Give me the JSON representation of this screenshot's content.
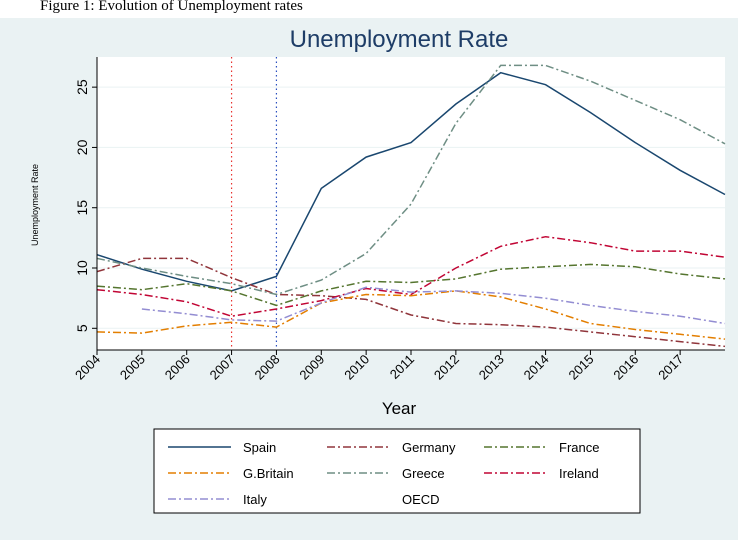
{
  "caption": "Figure 1: Evolution of Unemployment rates",
  "chart_data": {
    "type": "line",
    "title": "Unemployment Rate",
    "xlabel": "Year",
    "ylabel": "Unemployment Rate",
    "x": [
      2004,
      2005,
      2006,
      2007,
      2008,
      2009,
      2010,
      2011,
      2012,
      2013,
      2014,
      2015,
      2016,
      2017,
      2018
    ],
    "x_tick_labels": [
      "2004",
      "2005",
      "2006",
      "2007",
      "2008",
      "2009",
      "2010",
      "2011",
      "2012",
      "2013",
      "2014",
      "2015",
      "2016",
      "2017"
    ],
    "y_ticks": [
      5,
      10,
      15,
      20,
      25
    ],
    "xlim": [
      2004,
      2018
    ],
    "ylim": [
      3.2,
      27.5
    ],
    "grid": true,
    "reference_lines": [
      {
        "x": 2007,
        "color": "#e8322f",
        "dash": "dot"
      },
      {
        "x": 2008,
        "color": "#2a4fbf",
        "dash": "dot"
      }
    ],
    "series": [
      {
        "name": "Spain",
        "color": "#1a476f",
        "dash": "solid",
        "values": [
          11.1,
          9.9,
          8.9,
          8.1,
          9.3,
          16.6,
          19.2,
          20.4,
          23.6,
          26.2,
          25.2,
          22.9,
          20.4,
          18.1,
          16.1
        ]
      },
      {
        "name": "Germany",
        "color": "#90353b",
        "dash": "dashdot",
        "values": [
          9.7,
          10.8,
          10.8,
          9.2,
          7.8,
          7.7,
          7.4,
          6.1,
          5.4,
          5.3,
          5.1,
          4.7,
          4.3,
          3.9,
          3.5
        ]
      },
      {
        "name": "France",
        "color": "#55752f",
        "dash": "dashdot",
        "values": [
          8.5,
          8.2,
          8.7,
          8.1,
          6.9,
          8.1,
          8.9,
          8.8,
          9.1,
          9.9,
          10.1,
          10.3,
          10.1,
          9.5,
          9.1
        ]
      },
      {
        "name": "G.Britain",
        "color": "#e37e00",
        "dash": "dashdot",
        "values": [
          4.7,
          4.6,
          5.2,
          5.5,
          5.1,
          7.1,
          7.8,
          7.7,
          8.1,
          7.6,
          6.6,
          5.4,
          4.9,
          4.5,
          4.1
        ]
      },
      {
        "name": "Greece",
        "color": "#6e8e84",
        "dash": "dashdot",
        "values": [
          10.8,
          10.0,
          9.3,
          8.7,
          7.8,
          9.0,
          11.2,
          15.3,
          22.0,
          26.8,
          26.8,
          25.5,
          23.9,
          22.3,
          20.3
        ]
      },
      {
        "name": "Ireland",
        "color": "#c10534",
        "dash": "dashdot",
        "values": [
          8.2,
          7.8,
          7.2,
          6.0,
          6.6,
          7.3,
          8.3,
          7.8,
          10.0,
          11.8,
          12.6,
          12.1,
          11.4,
          11.4,
          10.9
        ]
      },
      {
        "name": "Italy",
        "color": "#938dd2",
        "dash": "dashdot",
        "x_start": 2005,
        "values": [
          null,
          6.6,
          6.2,
          5.7,
          5.6,
          7.1,
          8.4,
          8.0,
          8.1,
          7.9,
          7.5,
          6.9,
          6.4,
          6.0,
          5.4
        ]
      },
      {
        "name": "OECD",
        "color": "#cac27e",
        "dash": "solid",
        "values": [
          null,
          null,
          null,
          null,
          null,
          null,
          null,
          null,
          null,
          null,
          null,
          null,
          null,
          null,
          null
        ]
      }
    ],
    "legend_position": "bottom"
  },
  "colors": {
    "outer_background": "#eaf2f3",
    "plot_background": "#ffffff",
    "grid": "#eaf2f3",
    "title": "#1e3d67"
  }
}
